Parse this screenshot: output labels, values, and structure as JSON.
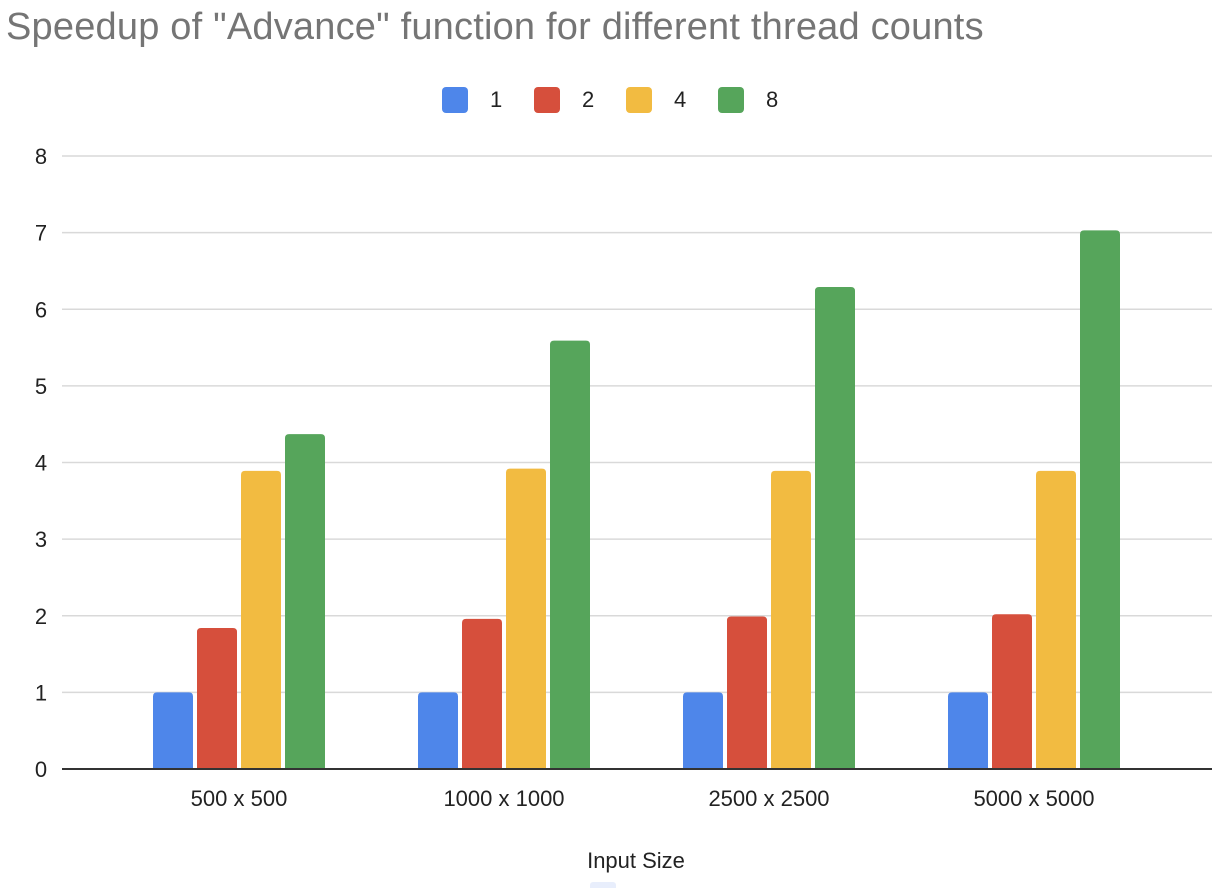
{
  "chart_data": {
    "type": "bar",
    "title": "Speedup of \"Advance\" function for different thread counts",
    "xlabel": "Input Size",
    "ylabel": "",
    "ylim": [
      0,
      8
    ],
    "yticks": [
      "0",
      "1",
      "2",
      "3",
      "4",
      "5",
      "6",
      "7",
      "8"
    ],
    "grid": true,
    "legend_position": "top-center",
    "categories": [
      "500 x 500",
      "1000 x 1000",
      "2500 x 2500",
      "5000 x 5000"
    ],
    "series": [
      {
        "name": "1",
        "color": "#4e86ea",
        "values": [
          1.0,
          1.0,
          1.0,
          1.0
        ]
      },
      {
        "name": "2",
        "color": "#d64f3c",
        "values": [
          1.84,
          1.96,
          1.99,
          2.02
        ]
      },
      {
        "name": "4",
        "color": "#f2bb41",
        "values": [
          3.89,
          3.92,
          3.89,
          3.89
        ]
      },
      {
        "name": "8",
        "color": "#56a55b",
        "values": [
          4.37,
          5.59,
          6.29,
          7.03
        ]
      }
    ]
  }
}
